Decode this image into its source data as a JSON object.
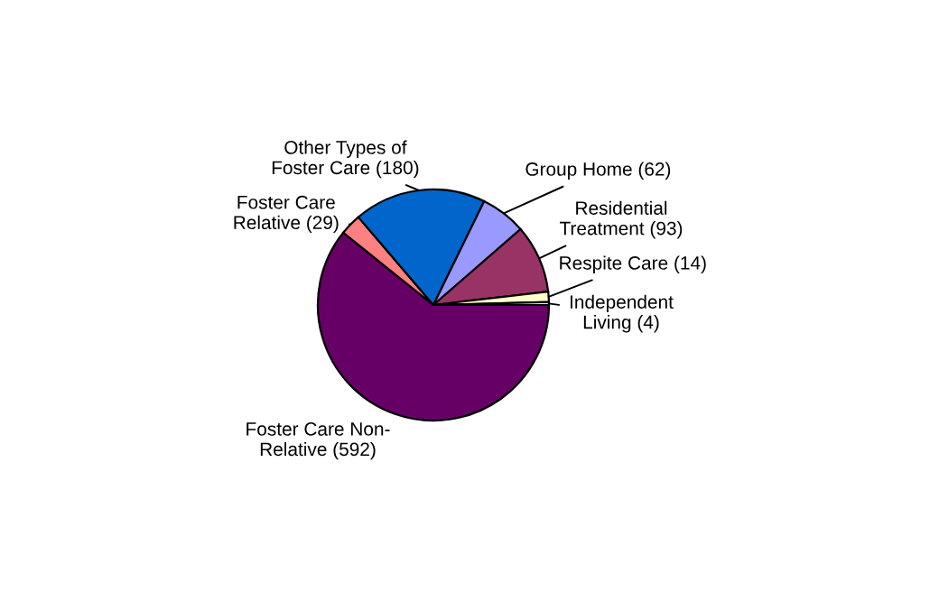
{
  "chart_data": {
    "type": "pie",
    "categories": [
      "Foster Care Non-\nRelative (592)",
      "Foster Care\nRelative (29)",
      "Other Types of\nFoster Care (180)",
      "Group Home (62)",
      "Residential\nTreatment (93)",
      "Respite Care (14)",
      "Independent\nLiving (4)"
    ],
    "values": [
      592,
      29,
      180,
      62,
      93,
      14,
      4
    ],
    "colors": [
      "#660066",
      "#ff8080",
      "#0066cc",
      "#9999ff",
      "#993366",
      "#ffffcc",
      "#ccffff"
    ]
  }
}
